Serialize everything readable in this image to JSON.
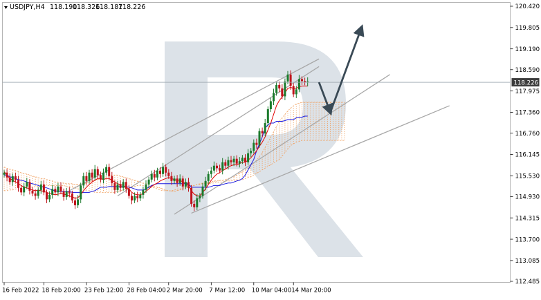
{
  "header": {
    "symbol": "USDJPY,H4",
    "ohlc": [
      "118.190",
      "118.326",
      "118.187",
      "118.226"
    ]
  },
  "chart_data": {
    "type": "candlestick",
    "symbol": "USDJPY",
    "timeframe": "H4",
    "last_price": 118.226,
    "last_price_label": "118.226",
    "ylim": [
      112.485,
      120.42
    ],
    "y_tick_labels": [
      "120.420",
      "119.805",
      "119.190",
      "118.590",
      "117.975",
      "117.360",
      "116.760",
      "116.145",
      "115.530",
      "114.930",
      "114.315",
      "113.700",
      "113.085",
      "112.485"
    ],
    "x_tick_labels": [
      "16 Feb 2022",
      "18 Feb 20:00",
      "23 Feb 12:00",
      "28 Feb 04:00",
      "2 Mar 20:00",
      "7 Mar 12:00",
      "10 Mar 04:00",
      "14 Mar 20:00"
    ],
    "candles_close": [
      115.62,
      115.48,
      115.35,
      115.52,
      115.41,
      115.18,
      115.05,
      115.22,
      115.35,
      115.1,
      115.02,
      114.95,
      115.12,
      115.28,
      115.05,
      114.85,
      114.98,
      115.15,
      115.05,
      115.22,
      115.08,
      114.92,
      115.08,
      115.02,
      114.82,
      114.68,
      114.85,
      115.25,
      115.52,
      115.38,
      115.62,
      115.48,
      115.72,
      115.55,
      115.42,
      115.62,
      115.78,
      115.52,
      115.32,
      115.12,
      115.28,
      115.18,
      115.35,
      115.15,
      114.95,
      114.82,
      114.95,
      114.88,
      114.98,
      115.12,
      115.28,
      115.42,
      115.58,
      115.48,
      115.68,
      115.58,
      115.78,
      115.62,
      115.52,
      115.38,
      115.45,
      115.32,
      115.45,
      115.22,
      115.35,
      115.18,
      114.72,
      114.62,
      114.88,
      114.95,
      115.22,
      115.38,
      115.58,
      115.68,
      115.82,
      115.75,
      115.68,
      115.92,
      115.82,
      115.98,
      115.92,
      116.02,
      115.88,
      115.95,
      116.05,
      115.92,
      116.18,
      116.25,
      116.48,
      116.42,
      116.82,
      116.75,
      117.05,
      117.45,
      117.68,
      117.92,
      118.15,
      118.05,
      117.82,
      118.25,
      118.45,
      118.12,
      117.88,
      118.02,
      118.32,
      118.26,
      118.22,
      118.25
    ],
    "tenkan_sen": [
      115.65,
      115.55,
      115.45,
      115.4,
      115.35,
      115.3,
      115.25,
      115.2,
      115.18,
      115.15,
      115.12,
      115.1,
      115.12,
      115.1,
      115.08,
      115.05,
      115.02,
      115.0,
      114.98,
      115.0,
      115.02,
      115.0,
      114.98,
      114.95,
      114.92,
      114.88,
      114.9,
      114.98,
      115.1,
      115.2,
      115.28,
      115.35,
      115.4,
      115.45,
      115.45,
      115.42,
      115.45,
      115.45,
      115.4,
      115.35,
      115.3,
      115.28,
      115.25,
      115.2,
      115.15,
      115.05,
      115.0,
      114.98,
      114.98,
      115.02,
      115.08,
      115.15,
      115.22,
      115.28,
      115.32,
      115.38,
      115.42,
      115.45,
      115.48,
      115.45,
      115.42,
      115.4,
      115.4,
      115.35,
      115.3,
      115.25,
      115.1,
      115.0,
      114.95,
      114.95,
      115.05,
      115.15,
      115.28,
      115.4,
      115.5,
      115.58,
      115.62,
      115.68,
      115.72,
      115.78,
      115.82,
      115.85,
      115.85,
      115.88,
      115.92,
      115.92,
      115.98,
      116.05,
      116.15,
      116.25,
      116.38,
      116.5,
      116.65,
      116.85,
      117.05,
      117.3,
      117.55,
      117.7,
      117.8,
      117.92,
      118.05,
      118.08,
      118.05,
      118.05,
      118.1,
      118.12,
      118.12,
      118.12
    ],
    "kijun_sen": [
      115.55,
      115.55,
      115.5,
      115.48,
      115.45,
      115.42,
      115.4,
      115.38,
      115.35,
      115.32,
      115.3,
      115.28,
      115.25,
      115.22,
      115.2,
      115.18,
      115.15,
      115.12,
      115.1,
      115.08,
      115.08,
      115.08,
      115.08,
      115.08,
      115.05,
      115.05,
      115.05,
      115.05,
      115.05,
      115.05,
      115.05,
      115.08,
      115.1,
      115.15,
      115.2,
      115.2,
      115.2,
      115.22,
      115.22,
      115.22,
      115.22,
      115.22,
      115.22,
      115.22,
      115.2,
      115.18,
      115.15,
      115.12,
      115.12,
      115.12,
      115.15,
      115.2,
      115.25,
      115.28,
      115.3,
      115.3,
      115.3,
      115.3,
      115.3,
      115.3,
      115.3,
      115.3,
      115.3,
      115.3,
      115.3,
      115.3,
      115.2,
      115.2,
      115.2,
      115.2,
      115.2,
      115.2,
      115.2,
      115.22,
      115.25,
      115.25,
      115.25,
      115.28,
      115.3,
      115.32,
      115.32,
      115.35,
      115.38,
      115.4,
      115.45,
      115.55,
      115.7,
      115.85,
      116.0,
      116.25,
      116.45,
      116.65,
      116.9,
      117.0,
      117.05,
      117.05,
      117.1,
      117.1,
      117.1,
      117.12,
      117.15,
      117.15,
      117.15,
      117.2,
      117.22,
      117.22,
      117.25,
      117.25
    ],
    "cloud_span_a": [
      115.78,
      115.75,
      115.72,
      115.7,
      115.68,
      115.65,
      115.62,
      115.6,
      115.58,
      115.55,
      115.52,
      115.5,
      115.48,
      115.45,
      115.45,
      115.42,
      115.4,
      115.38,
      115.35,
      115.35,
      115.32,
      115.32,
      115.3,
      115.3,
      115.3,
      115.28,
      115.28,
      115.28,
      115.3,
      115.32,
      115.35,
      115.38,
      115.4,
      115.42,
      115.45,
      115.48,
      115.5,
      115.52,
      115.55,
      115.55,
      115.55,
      115.52,
      115.5,
      115.48,
      115.45,
      115.42,
      115.4,
      115.38,
      115.35,
      115.32,
      115.3,
      115.28,
      115.25,
      115.22,
      115.2,
      115.18,
      115.15,
      115.12,
      115.1,
      115.08,
      115.08,
      115.1,
      115.12,
      115.15,
      115.18,
      115.2,
      115.22,
      115.25,
      115.28,
      115.3,
      115.32,
      115.32,
      115.35,
      115.35,
      115.38,
      115.38,
      115.4,
      115.4,
      115.42,
      115.45,
      115.48,
      115.5,
      115.55,
      115.6,
      115.65,
      115.7,
      115.75,
      115.82,
      115.9,
      115.98,
      116.08,
      116.2,
      116.35,
      116.5,
      116.65,
      116.8,
      116.95,
      117.1,
      117.2,
      117.3,
      117.4,
      117.48,
      117.55,
      117.6,
      117.62,
      117.65,
      117.65,
      117.65,
      117.65,
      117.65,
      117.65,
      117.65,
      117.65,
      117.65,
      117.65,
      117.65,
      117.65,
      117.65,
      117.65,
      117.65,
      117.65
    ],
    "cloud_span_b": [
      115.1,
      115.1,
      115.12,
      115.12,
      115.15,
      115.15,
      115.18,
      115.18,
      115.2,
      115.2,
      115.2,
      115.22,
      115.22,
      115.22,
      115.22,
      115.25,
      115.25,
      115.25,
      115.25,
      115.25,
      115.25,
      115.25,
      115.22,
      115.2,
      115.2,
      115.18,
      115.15,
      115.15,
      115.12,
      115.1,
      115.1,
      115.08,
      115.05,
      115.05,
      115.05,
      115.05,
      115.05,
      115.05,
      115.05,
      115.05,
      115.08,
      115.1,
      115.12,
      115.15,
      115.18,
      115.2,
      115.22,
      115.25,
      115.25,
      115.25,
      115.22,
      115.2,
      115.2,
      115.18,
      115.15,
      115.12,
      115.1,
      115.1,
      115.1,
      115.1,
      115.12,
      115.15,
      115.15,
      115.18,
      115.2,
      115.22,
      115.25,
      115.25,
      115.28,
      115.28,
      115.3,
      115.3,
      115.3,
      115.32,
      115.32,
      115.35,
      115.35,
      115.35,
      115.38,
      115.38,
      115.38,
      115.4,
      115.4,
      115.42,
      115.42,
      115.45,
      115.48,
      115.5,
      115.55,
      115.6,
      115.65,
      115.7,
      115.75,
      115.8,
      115.85,
      115.9,
      115.95,
      116.0,
      116.1,
      116.2,
      116.3,
      116.4,
      116.45,
      116.5,
      116.52,
      116.55,
      116.55,
      116.55,
      116.55,
      116.55,
      116.55,
      116.55,
      116.55,
      116.55,
      116.55,
      116.55,
      116.55,
      116.55,
      116.55,
      116.55,
      116.55
    ],
    "forecast_path": [
      118.226,
      117.36,
      119.805
    ],
    "colors": {
      "background": "#ffffff",
      "bull_candle": "#1b7a2c",
      "bear_candle": "#c0141c",
      "tenkan_sen": "#e00000",
      "kijun_sen": "#1515e0",
      "cloud": "#f0a060",
      "channel_lines": "#a8a8a8",
      "forecast_arrow": "#3a4a56",
      "price_line": "#9aa4ad",
      "axis_text": "#000000",
      "watermark": "#dce2e8"
    },
    "grid": false,
    "watermark_icon": "broker-logo-r"
  }
}
